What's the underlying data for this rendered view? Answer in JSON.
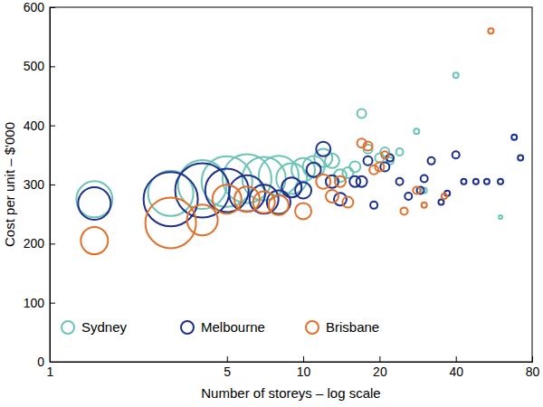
{
  "chart_data": {
    "type": "scatter",
    "marker": "bubble",
    "log": "x",
    "x_label": "Number of storeys – log scale",
    "y_label": "Cost per unit – $'000",
    "xlim": [
      1,
      80
    ],
    "xticks": [
      1,
      5,
      10,
      20,
      40,
      80
    ],
    "ylim": [
      0,
      600
    ],
    "yticks": [
      0,
      100,
      200,
      300,
      400,
      500,
      600
    ],
    "grid": false,
    "legend": "lower left",
    "series": [
      {
        "name": "Sydney",
        "color": "#6cc4b7",
        "x": [
          1.5,
          3,
          4,
          5,
          6,
          7,
          8,
          9,
          10,
          11,
          12,
          13,
          14,
          15,
          16,
          17,
          18,
          20,
          21,
          22,
          24,
          28,
          30,
          40,
          60
        ],
        "values": [
          275,
          285,
          300,
          305,
          310,
          310,
          315,
          310,
          325,
          330,
          345,
          340,
          315,
          320,
          330,
          420,
          360,
          345,
          355,
          340,
          355,
          390,
          290,
          485,
          245
        ],
        "sizes": [
          400,
          625,
          729,
          784,
          729,
          576,
          484,
          289,
          169,
          144,
          100,
          64,
          49,
          36,
          36,
          25,
          25,
          25,
          25,
          16,
          16,
          9,
          9,
          9,
          4
        ]
      },
      {
        "name": "Melbourne",
        "color": "#1c2f8c",
        "x": [
          1.5,
          3,
          4,
          5,
          6,
          7,
          8,
          9,
          10,
          11,
          12,
          13,
          14,
          16,
          17,
          18,
          19,
          21,
          22,
          24,
          26,
          29,
          30,
          32,
          35,
          37,
          40,
          43,
          48,
          53,
          60,
          68,
          72
        ],
        "values": [
          268,
          275,
          290,
          290,
          285,
          275,
          270,
          295,
          290,
          325,
          360,
          305,
          275,
          305,
          305,
          340,
          265,
          330,
          345,
          305,
          280,
          290,
          310,
          340,
          270,
          285,
          350,
          305,
          305,
          305,
          305,
          380,
          345
        ],
        "sizes": [
          324,
          900,
          900,
          576,
          400,
          256,
          169,
          121,
          81,
          64,
          64,
          49,
          49,
          36,
          36,
          25,
          16,
          25,
          16,
          16,
          16,
          16,
          16,
          16,
          9,
          9,
          16,
          9,
          9,
          9,
          9,
          9,
          9
        ]
      },
      {
        "name": "Brisbane",
        "color": "#e0712c",
        "x": [
          1.5,
          3,
          4,
          5,
          6,
          7,
          8,
          10,
          12,
          13,
          14,
          15,
          17,
          18,
          19,
          20,
          21,
          25,
          28,
          30,
          36,
          55
        ],
        "values": [
          205,
          235,
          240,
          275,
          275,
          270,
          265,
          255,
          305,
          280,
          305,
          270,
          370,
          365,
          325,
          330,
          350,
          255,
          290,
          265,
          280,
          560
        ],
        "sizes": [
          225,
          784,
          289,
          256,
          196,
          144,
          121,
          81,
          64,
          49,
          36,
          36,
          25,
          25,
          25,
          25,
          16,
          16,
          16,
          9,
          9,
          9
        ]
      }
    ]
  }
}
